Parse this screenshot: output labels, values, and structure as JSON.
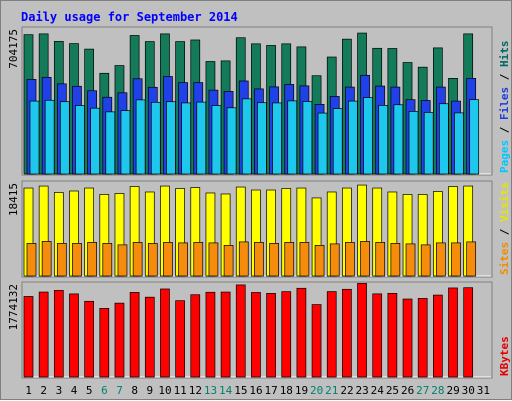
{
  "chart_data": {
    "type": "bar",
    "title": "Daily usage for September 2014",
    "categories": [
      "1",
      "2",
      "3",
      "4",
      "5",
      "6",
      "7",
      "8",
      "9",
      "10",
      "11",
      "12",
      "13",
      "14",
      "15",
      "16",
      "17",
      "18",
      "19",
      "20",
      "21",
      "22",
      "23",
      "24",
      "25",
      "26",
      "27",
      "28",
      "29",
      "30",
      "31"
    ],
    "weekend_days": [
      "6",
      "7",
      "13",
      "14",
      "20",
      "21",
      "27",
      "28"
    ],
    "panels": [
      {
        "id": "hits",
        "ymax_label": "704175",
        "ymax": 704175,
        "ylabel_parts": [
          {
            "text": "Pages",
            "color": "#00c8ff"
          },
          {
            "text": " / ",
            "color": "#000000"
          },
          {
            "text": "Files",
            "color": "#1e3cdc"
          },
          {
            "text": " / ",
            "color": "#000000"
          },
          {
            "text": "Hits",
            "color": "#006666"
          }
        ],
        "series": [
          {
            "name": "Hits",
            "color": "#137a5a",
            "values": [
              686000,
              690000,
              653000,
              642000,
              615000,
              496000,
              534000,
              682000,
              652000,
              690000,
              652000,
              660000,
              554000,
              557000,
              671000,
              641000,
              633000,
              641000,
              626000,
              484000,
              576000,
              664000,
              694000,
              619000,
              618000,
              549000,
              526000,
              621000,
              471000,
              690000,
              null
            ]
          },
          {
            "name": "Files",
            "color": "#2040e8",
            "values": [
              466000,
              476000,
              444000,
              432000,
              410000,
              378000,
              400000,
              469000,
              427000,
              480000,
              450000,
              450000,
              413000,
              407000,
              458000,
              419000,
              429000,
              441000,
              434000,
              343000,
              382000,
              428000,
              486000,
              433000,
              428000,
              366000,
              362000,
              428000,
              359000,
              471000,
              null
            ]
          },
          {
            "name": "Pages",
            "color": "#1ec8ec",
            "values": [
              359000,
              363000,
              356000,
              337000,
              324000,
              306000,
              312000,
              365000,
              353000,
              356000,
              350000,
              354000,
              337000,
              326000,
              370000,
              351000,
              350000,
              360000,
              357000,
              300000,
              322000,
              359000,
              376000,
              338000,
              341000,
              308000,
              303000,
              346000,
              301000,
              366000,
              null
            ]
          }
        ]
      },
      {
        "id": "visits",
        "ymax_label": "18415",
        "ymax": 18415,
        "ylabel_parts": [
          {
            "text": "Sites",
            "color": "#f08c00"
          },
          {
            "text": " / ",
            "color": "#000000"
          },
          {
            "text": "Visits",
            "color": "#e6e600"
          }
        ],
        "series": [
          {
            "name": "Visits",
            "color": "#ffff00",
            "values": [
              17800,
              18200,
              16900,
              17200,
              17800,
              16500,
              16700,
              18100,
              17000,
              18200,
              17700,
              17900,
              16800,
              16600,
              18000,
              17400,
              17400,
              17700,
              17800,
              15800,
              17000,
              17800,
              18400,
              17800,
              17000,
              16500,
              16500,
              17100,
              18100,
              18200,
              null
            ]
          },
          {
            "name": "Sites",
            "color": "#f58c0c",
            "values": [
              6600,
              7000,
              6600,
              6600,
              6800,
              6600,
              6300,
              6800,
              6600,
              6800,
              6700,
              6800,
              6700,
              6200,
              6900,
              6800,
              6600,
              6800,
              6800,
              6200,
              6500,
              6800,
              7000,
              6800,
              6600,
              6500,
              6300,
              6700,
              6700,
              6900,
              null
            ]
          }
        ]
      },
      {
        "id": "kbytes",
        "ymax_label": "1774132",
        "ymax": 1774132,
        "ylabel_parts": [
          {
            "text": "KBytes",
            "color": "#e60000"
          }
        ],
        "series": [
          {
            "name": "KBytes",
            "color": "#ff0000",
            "values": [
              1570000,
              1656000,
              1688000,
              1620000,
              1476000,
              1338000,
              1440000,
              1650000,
              1556000,
              1716000,
              1488000,
              1604000,
              1652000,
              1656000,
              1795000,
              1648000,
              1630000,
              1664000,
              1730000,
              1412000,
              1665000,
              1710000,
              1825000,
              1621000,
              1631000,
              1520000,
              1532000,
              1597000,
              1736000,
              1741000,
              null
            ]
          }
        ]
      }
    ],
    "colors": {
      "background": "#c0c0c0",
      "title": "#0000ff",
      "weekday_label": "#000000",
      "weekend_label": "#00806e"
    }
  }
}
